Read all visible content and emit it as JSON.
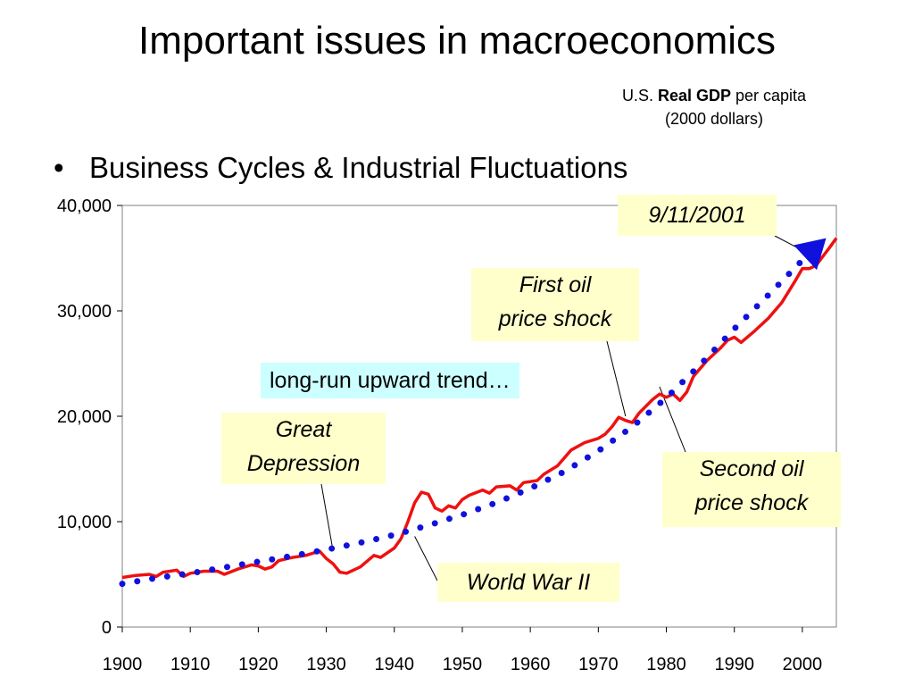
{
  "slide": {
    "title": "Important issues in macroeconomics",
    "bullet_marker": "•",
    "bullet_text": "Business Cycles & Industrial Fluctuations",
    "caption_prefix": "U.S. ",
    "caption_bold": "Real GDP",
    "caption_suffix": " per capita",
    "caption_line2": "(2000 dollars)"
  },
  "annotations": {
    "trend": "long-run upward trend…",
    "great_depression_1": "Great",
    "great_depression_2": "Depression",
    "first_oil_1": "First oil",
    "first_oil_2": "price shock",
    "second_oil_1": "Second oil",
    "second_oil_2": "price shock",
    "ww2": "World War II",
    "sept11": "9/11/2001"
  },
  "chart_data": {
    "type": "line",
    "title": "",
    "xlabel": "",
    "ylabel": "",
    "xlim": [
      1900,
      2005
    ],
    "ylim": [
      0,
      40000
    ],
    "x_ticks": [
      1900,
      1910,
      1920,
      1930,
      1940,
      1950,
      1960,
      1970,
      1980,
      1990,
      2000
    ],
    "y_ticks": [
      0,
      10000,
      20000,
      30000,
      40000
    ],
    "x_tick_labels": [
      "1900",
      "1910",
      "1920",
      "1930",
      "1940",
      "1950",
      "1960",
      "1970",
      "1980",
      "1990",
      "2000"
    ],
    "y_tick_labels": [
      "0",
      "10,000",
      "20,000",
      "30,000",
      "40,000"
    ],
    "grid": false,
    "legend": "none",
    "series": [
      {
        "style": "solid",
        "color": "#ee1111",
        "points": [
          [
            1900,
            4700
          ],
          [
            1902,
            4900
          ],
          [
            1904,
            5000
          ],
          [
            1905,
            4800
          ],
          [
            1906,
            5200
          ],
          [
            1908,
            5400
          ],
          [
            1909,
            4800
          ],
          [
            1910,
            5100
          ],
          [
            1912,
            5300
          ],
          [
            1914,
            5300
          ],
          [
            1915,
            5000
          ],
          [
            1917,
            5500
          ],
          [
            1919,
            5900
          ],
          [
            1920,
            5800
          ],
          [
            1921,
            5500
          ],
          [
            1922,
            5700
          ],
          [
            1923,
            6300
          ],
          [
            1925,
            6600
          ],
          [
            1927,
            6800
          ],
          [
            1929,
            7200
          ],
          [
            1930,
            6500
          ],
          [
            1931,
            6000
          ],
          [
            1932,
            5200
          ],
          [
            1933,
            5100
          ],
          [
            1935,
            5700
          ],
          [
            1937,
            6800
          ],
          [
            1938,
            6600
          ],
          [
            1940,
            7500
          ],
          [
            1941,
            8400
          ],
          [
            1942,
            10000
          ],
          [
            1943,
            11800
          ],
          [
            1944,
            12800
          ],
          [
            1945,
            12600
          ],
          [
            1946,
            11300
          ],
          [
            1947,
            11000
          ],
          [
            1948,
            11500
          ],
          [
            1949,
            11300
          ],
          [
            1950,
            12100
          ],
          [
            1951,
            12500
          ],
          [
            1953,
            13000
          ],
          [
            1954,
            12700
          ],
          [
            1955,
            13300
          ],
          [
            1957,
            13400
          ],
          [
            1958,
            13000
          ],
          [
            1959,
            13700
          ],
          [
            1961,
            13900
          ],
          [
            1962,
            14500
          ],
          [
            1964,
            15300
          ],
          [
            1966,
            16800
          ],
          [
            1968,
            17500
          ],
          [
            1970,
            17900
          ],
          [
            1971,
            18300
          ],
          [
            1972,
            19000
          ],
          [
            1973,
            19900
          ],
          [
            1974,
            19600
          ],
          [
            1975,
            19400
          ],
          [
            1976,
            20300
          ],
          [
            1978,
            21600
          ],
          [
            1979,
            22100
          ],
          [
            1980,
            21800
          ],
          [
            1981,
            22100
          ],
          [
            1982,
            21500
          ],
          [
            1983,
            22300
          ],
          [
            1984,
            23800
          ],
          [
            1986,
            25300
          ],
          [
            1988,
            26500
          ],
          [
            1989,
            27200
          ],
          [
            1990,
            27500
          ],
          [
            1991,
            27000
          ],
          [
            1993,
            28100
          ],
          [
            1995,
            29300
          ],
          [
            1997,
            30800
          ],
          [
            1999,
            32900
          ],
          [
            2000,
            34000
          ],
          [
            2001,
            34000
          ],
          [
            2002,
            34300
          ],
          [
            2004,
            36000
          ],
          [
            2005,
            36900
          ]
        ]
      },
      {
        "style": "dotted",
        "color": "#1111dd",
        "points": [
          [
            1900,
            4100
          ],
          [
            1905,
            4650
          ],
          [
            1910,
            5100
          ],
          [
            1915,
            5650
          ],
          [
            1920,
            6200
          ],
          [
            1925,
            6750
          ],
          [
            1930,
            7350
          ],
          [
            1935,
            8000
          ],
          [
            1940,
            8750
          ],
          [
            1945,
            9650
          ],
          [
            1950,
            10650
          ],
          [
            1955,
            11800
          ],
          [
            1960,
            13150
          ],
          [
            1965,
            14750
          ],
          [
            1970,
            16700
          ],
          [
            1975,
            19000
          ],
          [
            1980,
            21750
          ],
          [
            1985,
            24900
          ],
          [
            1990,
            28300
          ],
          [
            1995,
            31500
          ],
          [
            2000,
            34800
          ],
          [
            2001,
            35400
          ]
        ]
      }
    ]
  }
}
